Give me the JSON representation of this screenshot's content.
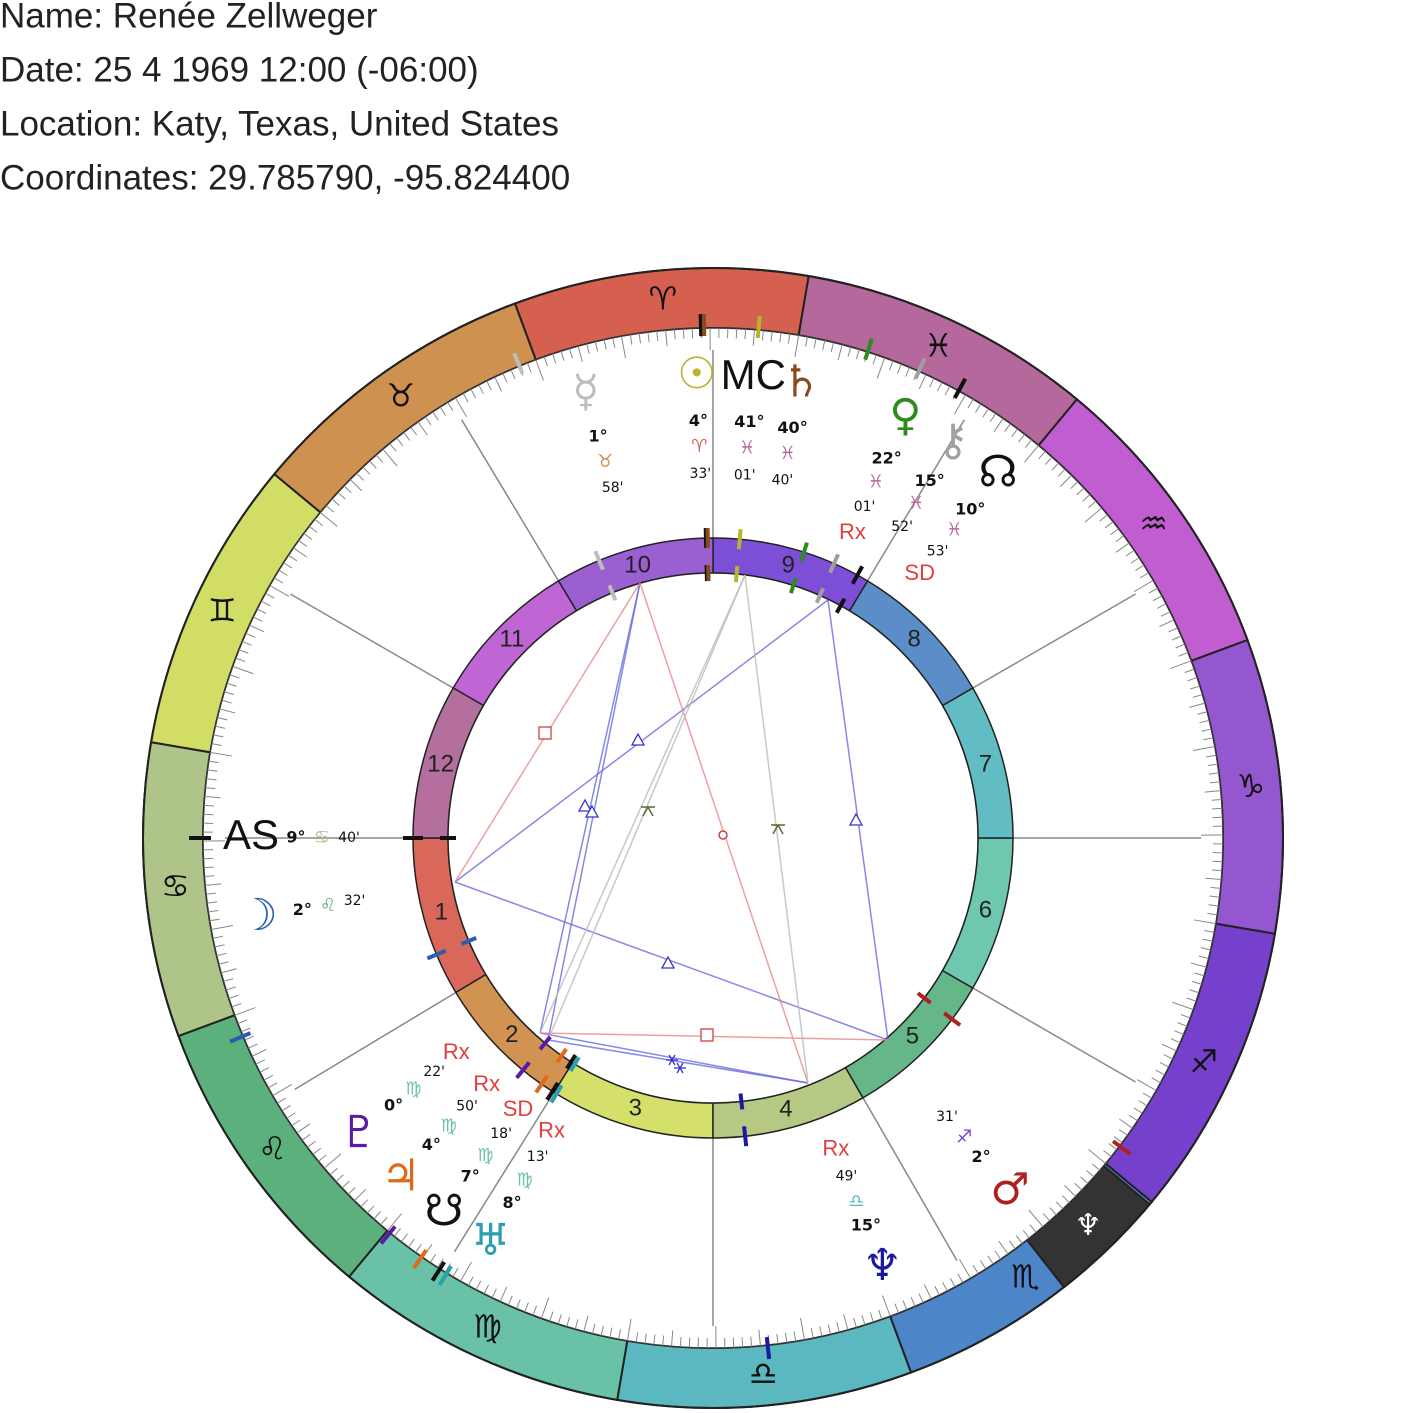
{
  "header": {
    "name": "Name: Renée Zellweger",
    "date": "Date: 25 4 1969 12:00 (-06:00)",
    "location": "Location: Katy, Texas, United States",
    "coordinates": "Coordinates: 29.785790, -95.824400"
  },
  "zodiac": [
    {
      "glyph": "♈︎",
      "color": "#d6604f"
    },
    {
      "glyph": "♉︎",
      "color": "#cf9150"
    },
    {
      "glyph": "♊︎",
      "color": "#d2dd66"
    },
    {
      "glyph": "♋︎",
      "color": "#aec489"
    },
    {
      "glyph": "♌︎",
      "color": "#5bb07c"
    },
    {
      "glyph": "♍︎",
      "color": "#69c2a8"
    },
    {
      "glyph": "♎︎",
      "color": "#5cb8c0"
    },
    {
      "glyph": "♏︎",
      "color": "#4c85c8"
    },
    {
      "glyph": "♐︎",
      "color": "#7440cc"
    },
    {
      "glyph": "♑︎",
      "color": "#9457d0"
    },
    {
      "glyph": "♒︎",
      "color": "#c05dd0"
    },
    {
      "glyph": "♓︎",
      "color": "#b4689b"
    }
  ],
  "highlight": {
    "glyph": "♆︎",
    "color": "#333333"
  },
  "houses": [
    {
      "label": "1",
      "color": "#d9685a"
    },
    {
      "label": "2",
      "color": "#d29352"
    },
    {
      "label": "3",
      "color": "#d4e06a"
    },
    {
      "label": "4",
      "color": "#b5c985"
    },
    {
      "label": "5",
      "color": "#65b688"
    },
    {
      "label": "6",
      "color": "#6ec8b0"
    },
    {
      "label": "7",
      "color": "#62bcc3"
    },
    {
      "label": "8",
      "color": "#5b8ec8"
    },
    {
      "label": "9",
      "color": "#7d4fd6"
    },
    {
      "label": "10",
      "color": "#9b5fd1"
    },
    {
      "label": "11",
      "color": "#c065d4"
    },
    {
      "label": "12",
      "color": "#b46f9f"
    }
  ],
  "points": [
    {
      "glyph": "☿︎",
      "color": "#bdbdbd",
      "degree": "1°",
      "sign": "♉︎",
      "minutes": "58'"
    },
    {
      "glyph": "☉︎",
      "color": "#b8b42a",
      "degree": "4°",
      "sign": "♈︎",
      "minutes": "33'"
    },
    {
      "glyph": "MC",
      "color": "#111111",
      "degree": "41°",
      "sign": "♓︎",
      "minutes": "01'"
    },
    {
      "glyph": "♄︎",
      "color": "#8b4a1e",
      "degree": "40°",
      "sign": "♓︎",
      "minutes": "40'"
    },
    {
      "glyph": "♀︎",
      "color": "#2e8b1e",
      "degree": "22°",
      "sign": "♓︎",
      "minutes": "01'",
      "status": "Rx"
    },
    {
      "glyph": "⚷︎",
      "color": "#a0a0a0",
      "degree": "15°",
      "sign": "♓︎",
      "minutes": "52'"
    },
    {
      "glyph": "☊︎",
      "color": "#111111",
      "degree": "10°",
      "sign": "♓︎",
      "minutes": "53'",
      "status": "SD"
    },
    {
      "glyph": "AS",
      "color": "#111111",
      "degree": "9°",
      "sign": "♋︎",
      "minutes": "40'"
    },
    {
      "glyph": "☽︎",
      "color": "#2a5db0",
      "degree": "2°",
      "sign": "♌︎",
      "minutes": "32'"
    },
    {
      "glyph": "♇︎",
      "color": "#5a1aa8",
      "degree": "0°",
      "sign": "♍︎",
      "minutes": "22'",
      "status": "Rx"
    },
    {
      "glyph": "♃︎",
      "color": "#e06a1a",
      "degree": "4°",
      "sign": "♍︎",
      "minutes": "50'",
      "status": "Rx"
    },
    {
      "glyph": "☋︎",
      "color": "#111111",
      "degree": "7°",
      "sign": "♍︎",
      "minutes": "18'",
      "status": "SD"
    },
    {
      "glyph": "♅︎",
      "color": "#2aa0b0",
      "degree": "8°",
      "sign": "♍︎",
      "minutes": "13'",
      "status": "Rx"
    },
    {
      "glyph": "♆︎",
      "color": "#1a1aa0",
      "degree": "15°",
      "sign": "♎︎",
      "minutes": "49'",
      "status": "Rx"
    },
    {
      "glyph": "♂︎",
      "color": "#b02020",
      "degree": "2°",
      "sign": "♐︎",
      "minutes": "31'"
    }
  ]
}
